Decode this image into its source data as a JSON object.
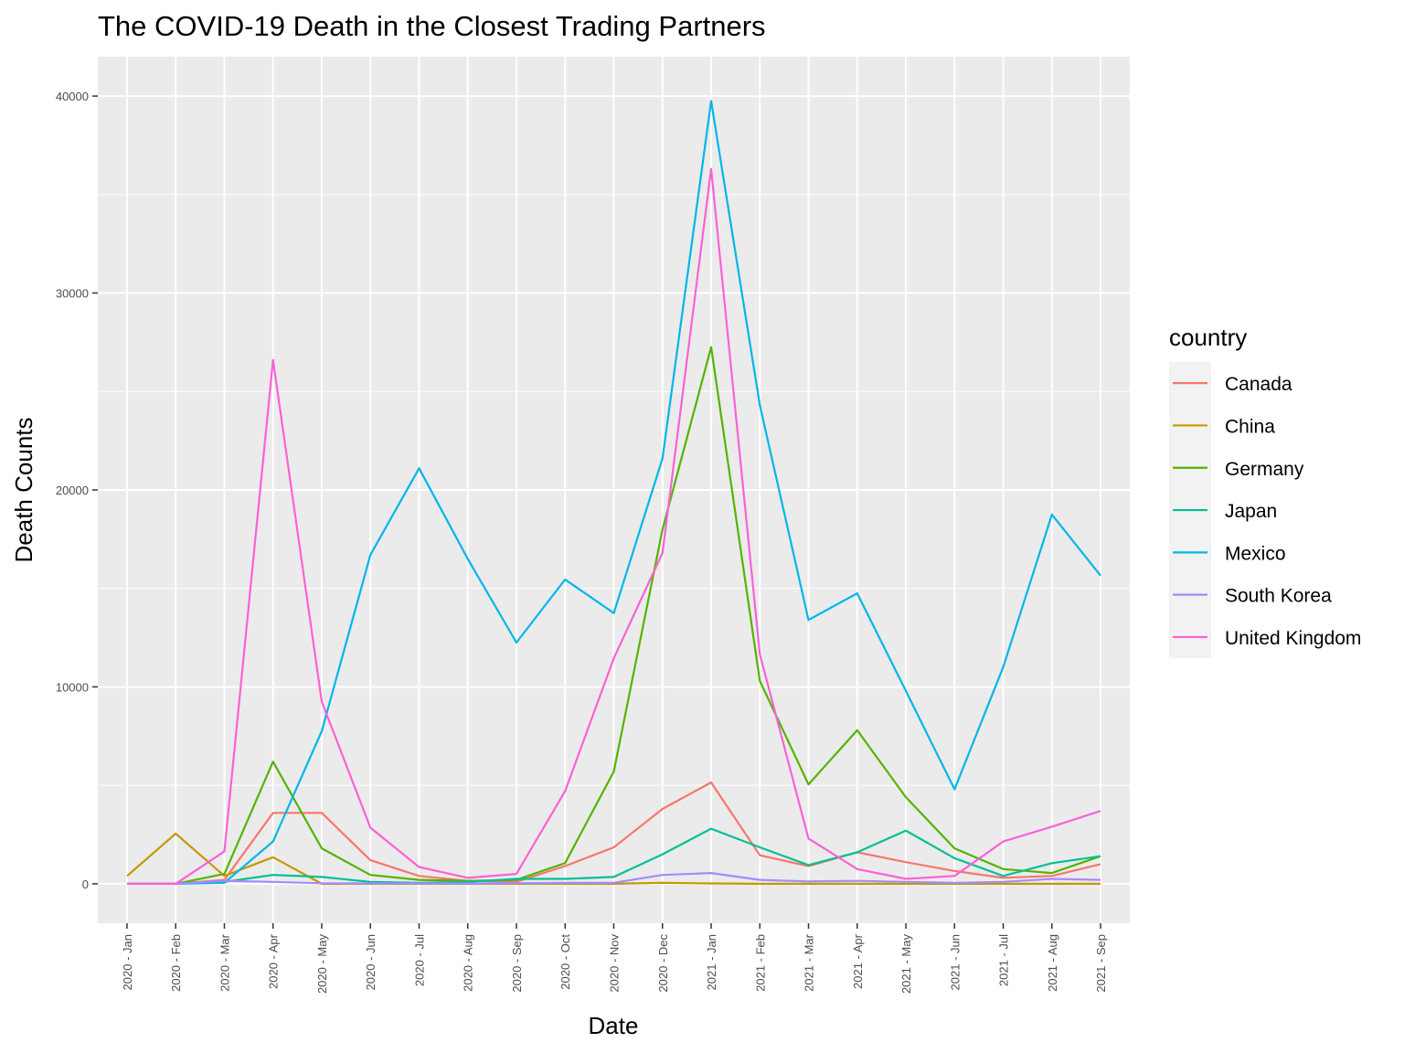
{
  "chart_data": {
    "type": "line",
    "title": "The COVID-19 Death in the Closest Trading Partners",
    "xlabel": "Date",
    "ylabel": "Death Counts",
    "ylim": [
      -2000,
      42000
    ],
    "y_ticks": [
      0,
      10000,
      20000,
      30000,
      40000
    ],
    "grid": true,
    "legend": {
      "title": "country",
      "position": "right"
    },
    "categories": [
      "2020 - Jan",
      "2020 - Feb",
      "2020 - Mar",
      "2020 - Apr",
      "2020 - May",
      "2020 - Jun",
      "2020 - Jul",
      "2020 - Aug",
      "2020 - Sep",
      "2020 - Oct",
      "2020 - Nov",
      "2020 - Dec",
      "2021 - Jan",
      "2021 - Feb",
      "2021 - Mar",
      "2021 - Apr",
      "2021 - May",
      "2021 - Jun",
      "2021 - Jul",
      "2021 - Aug",
      "2021 - Sep"
    ],
    "series": [
      {
        "name": "Canada",
        "color": "#F8766D",
        "values": [
          0,
          0,
          200,
          3600,
          3600,
          1200,
          400,
          150,
          100,
          900,
          1850,
          3800,
          5150,
          1450,
          900,
          1600,
          1100,
          650,
          300,
          400,
          1000
        ]
      },
      {
        "name": "China",
        "color": "#C49A00",
        "values": [
          400,
          2550,
          400,
          1350,
          0,
          0,
          0,
          0,
          0,
          0,
          0,
          50,
          20,
          0,
          0,
          0,
          0,
          0,
          0,
          0,
          0
        ]
      },
      {
        "name": "Germany",
        "color": "#53B400",
        "values": [
          0,
          0,
          500,
          6200,
          1800,
          450,
          200,
          150,
          200,
          1050,
          5700,
          18000,
          27250,
          10300,
          5050,
          7800,
          4400,
          1800,
          750,
          550,
          1400
        ]
      },
      {
        "name": "Japan",
        "color": "#00C094",
        "values": [
          0,
          0,
          100,
          450,
          350,
          100,
          50,
          100,
          250,
          250,
          350,
          1500,
          2800,
          1850,
          950,
          1600,
          2700,
          1300,
          400,
          1050,
          1400
        ]
      },
      {
        "name": "Mexico",
        "color": "#00B6EB",
        "values": [
          0,
          0,
          50,
          2150,
          7750,
          16700,
          21100,
          16500,
          12250,
          15450,
          13750,
          21600,
          39750,
          24300,
          13400,
          14750,
          9800,
          4800,
          11000,
          18750,
          15650
        ]
      },
      {
        "name": "South Korea",
        "color": "#A58AFF",
        "values": [
          0,
          0,
          150,
          100,
          30,
          20,
          20,
          20,
          30,
          50,
          50,
          450,
          550,
          200,
          120,
          150,
          100,
          50,
          100,
          250,
          200
        ]
      },
      {
        "name": "United Kingdom",
        "color": "#FB61D7",
        "values": [
          0,
          0,
          1650,
          26600,
          9250,
          2850,
          850,
          300,
          500,
          4700,
          11450,
          16800,
          36300,
          11650,
          2300,
          750,
          250,
          400,
          2150,
          2900,
          3700
        ]
      }
    ]
  }
}
